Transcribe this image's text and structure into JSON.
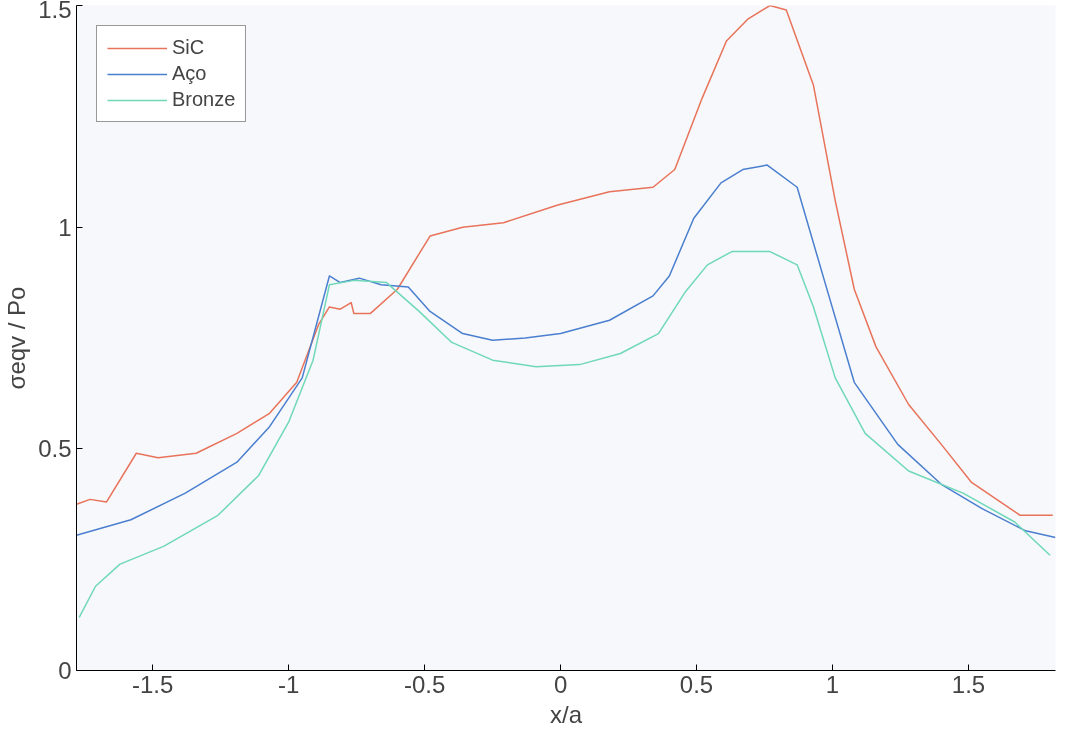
{
  "chart_data": {
    "type": "line",
    "xlabel": "x/a",
    "ylabel": "σeqv / Po",
    "xlim": [
      -1.78,
      1.82
    ],
    "ylim": [
      0,
      1.5
    ],
    "xticks": [
      -1.5,
      -1,
      -0.5,
      0,
      0.5,
      1,
      1.5
    ],
    "yticks": [
      0,
      0.5,
      1,
      1.5
    ],
    "grid": false,
    "legend": "top left",
    "marker": "none",
    "line_style": "solid",
    "series": [
      {
        "name": "SiC",
        "color": "#e8735a",
        "x": [
          -1.78,
          -1.73,
          -1.67,
          -1.56,
          -1.48,
          -1.34,
          -1.19,
          -1.07,
          -0.97,
          -0.89,
          -0.85,
          -0.81,
          -0.77,
          -0.76,
          -0.7,
          -0.6,
          -0.48,
          -0.36,
          -0.21,
          -0.01,
          0.18,
          0.34,
          0.42,
          0.52,
          0.61,
          0.69,
          0.77,
          0.83,
          0.93,
          1.01,
          1.08,
          1.16,
          1.28,
          1.4,
          1.51,
          1.69,
          1.81
        ],
        "values": [
          0.375,
          0.386,
          0.38,
          0.49,
          0.48,
          0.49,
          0.535,
          0.58,
          0.65,
          0.78,
          0.82,
          0.815,
          0.83,
          0.805,
          0.805,
          0.86,
          0.98,
          1.0,
          1.01,
          1.05,
          1.08,
          1.09,
          1.13,
          1.29,
          1.42,
          1.47,
          1.5,
          1.49,
          1.32,
          1.06,
          0.86,
          0.73,
          0.6,
          0.51,
          0.425,
          0.35,
          0.35
        ]
      },
      {
        "name": "Aço",
        "color": "#4a7fcf",
        "x": [
          -1.78,
          -1.58,
          -1.38,
          -1.19,
          -1.07,
          -0.95,
          -0.85,
          -0.81,
          -0.74,
          -0.66,
          -0.56,
          -0.48,
          -0.36,
          -0.25,
          -0.13,
          0,
          0.18,
          0.34,
          0.4,
          0.49,
          0.59,
          0.67,
          0.76,
          0.87,
          0.97,
          1.08,
          1.24,
          1.4,
          1.55,
          1.71,
          1.82
        ],
        "values": [
          0.305,
          0.34,
          0.4,
          0.47,
          0.55,
          0.66,
          0.89,
          0.875,
          0.885,
          0.87,
          0.865,
          0.81,
          0.76,
          0.745,
          0.75,
          0.76,
          0.79,
          0.845,
          0.89,
          1.02,
          1.1,
          1.13,
          1.14,
          1.09,
          0.88,
          0.65,
          0.51,
          0.42,
          0.365,
          0.315,
          0.3
        ]
      },
      {
        "name": "Bronze",
        "color": "#6fd8b8",
        "x": [
          -1.77,
          -1.71,
          -1.62,
          -1.46,
          -1.26,
          -1.11,
          -1.0,
          -0.91,
          -0.85,
          -0.76,
          -0.64,
          -0.52,
          -0.4,
          -0.25,
          -0.09,
          0.07,
          0.22,
          0.36,
          0.46,
          0.54,
          0.63,
          0.77,
          0.87,
          0.93,
          1.01,
          1.12,
          1.28,
          1.48,
          1.67,
          1.8
        ],
        "values": [
          0.12,
          0.19,
          0.24,
          0.28,
          0.35,
          0.44,
          0.56,
          0.7,
          0.87,
          0.88,
          0.875,
          0.81,
          0.74,
          0.7,
          0.685,
          0.69,
          0.715,
          0.76,
          0.855,
          0.915,
          0.945,
          0.945,
          0.915,
          0.82,
          0.66,
          0.535,
          0.45,
          0.4,
          0.335,
          0.26
        ]
      }
    ]
  }
}
